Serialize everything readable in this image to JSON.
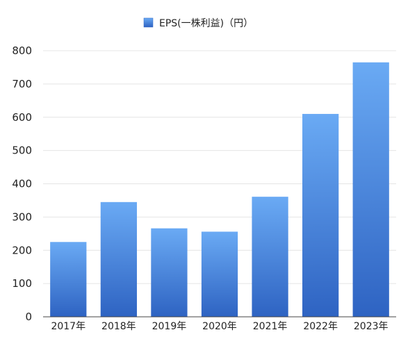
{
  "chart_data": {
    "type": "bar",
    "title": "",
    "xlabel": "",
    "ylabel": "",
    "categories": [
      "2017年",
      "2018年",
      "2019年",
      "2020年",
      "2021年",
      "2022年",
      "2023年"
    ],
    "series": [
      {
        "name": "EPS(一株利益)（円）",
        "values": [
          225,
          345,
          266,
          256,
          361,
          610,
          765
        ]
      }
    ],
    "ylim": [
      0,
      800
    ],
    "yticks": [
      0,
      100,
      200,
      300,
      400,
      500,
      600,
      700,
      800
    ],
    "grid": true,
    "legend_position": "top-center",
    "colors": {
      "bar_top": "#6aaaf4",
      "bar_bottom": "#2e63c2",
      "grid": "#e4e4e4",
      "axis": "#444444"
    }
  }
}
